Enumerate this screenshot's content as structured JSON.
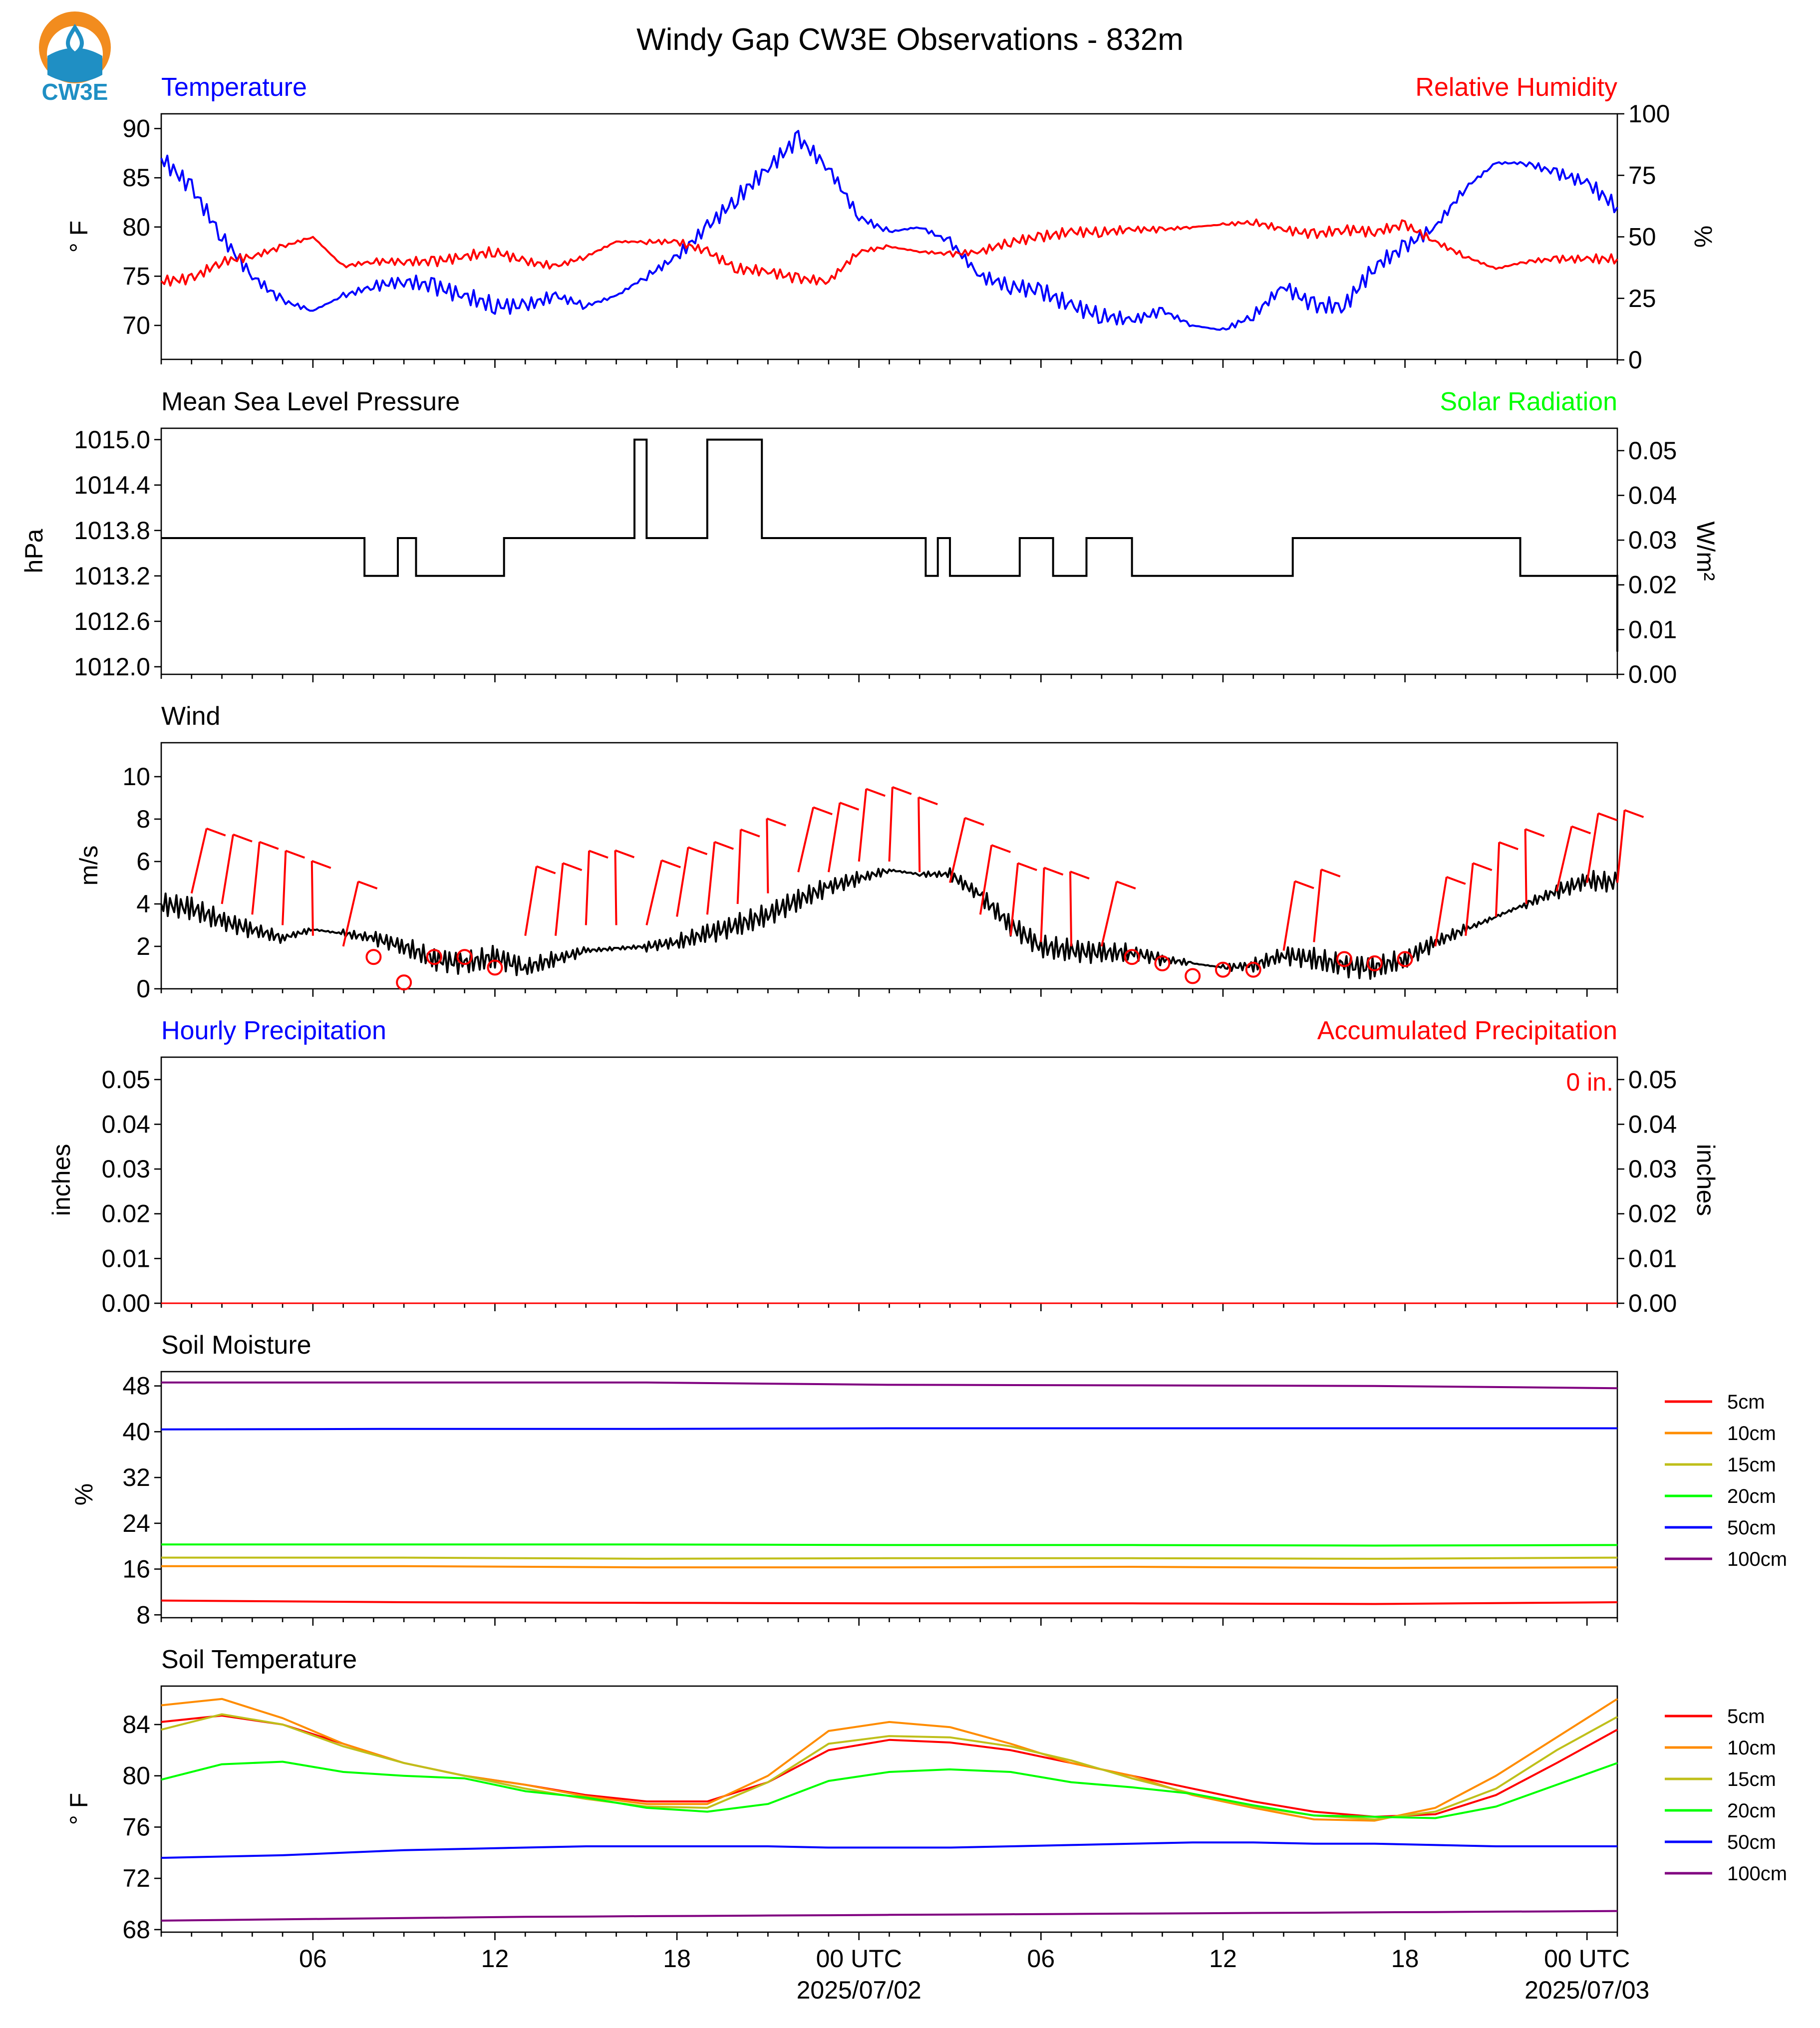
{
  "title": "Windy Gap CW3E Observations - 832m",
  "logo": {
    "text": "CW3E",
    "primary_color": "#f28c1e",
    "secondary_color": "#1f8fc4"
  },
  "colors": {
    "blue": "#0000ff",
    "red": "#ff0000",
    "green": "#00ff00",
    "black": "#000000",
    "orange": "#ff8c00",
    "olive": "#bfbf1a",
    "purple": "#800080"
  },
  "x_axis": {
    "range_hours": [
      0,
      48
    ],
    "ticks": [
      {
        "t": 5,
        "label": "06"
      },
      {
        "t": 11,
        "label": "12"
      },
      {
        "t": 17,
        "label": "18"
      },
      {
        "t": 23,
        "label": "00 UTC"
      },
      {
        "t": 29,
        "label": "06"
      },
      {
        "t": 35,
        "label": "12"
      },
      {
        "t": 41,
        "label": "18"
      },
      {
        "t": 47,
        "label": "00 UTC"
      }
    ],
    "dates": [
      {
        "t": 23,
        "label": "2025/07/02"
      },
      {
        "t": 47,
        "label": "2025/07/03"
      }
    ]
  },
  "panels": {
    "temp_rh": {
      "left_title": "Temperature",
      "right_title": "Relative Humidity",
      "ylabel_left": "° F",
      "ylabel_right": "%",
      "yticks_left": [
        70,
        75,
        80,
        85,
        90
      ],
      "ylim_left": [
        66.5,
        91.5
      ],
      "yticks_right": [
        0,
        25,
        50,
        75,
        100
      ],
      "ylim_right": [
        0,
        100
      ]
    },
    "pressure": {
      "left_title": "Mean Sea Level Pressure",
      "right_title": "Solar Radiation",
      "ylabel_left": "hPa",
      "ylabel_right": "W/m²",
      "yticks_left": [
        "1012.0",
        "1012.6",
        "1013.2",
        "1013.8",
        "1014.4",
        "1015.0"
      ],
      "ylim_left": [
        1011.9,
        1015.15
      ],
      "yticks_right": [
        "0.00",
        "0.01",
        "0.02",
        "0.03",
        "0.04",
        "0.05"
      ],
      "ylim_right": [
        0,
        0.055
      ]
    },
    "wind": {
      "left_title": "Wind",
      "ylabel_left": "m/s",
      "yticks_left": [
        0,
        2,
        4,
        6,
        8,
        10
      ],
      "ylim_left": [
        0,
        11.6
      ]
    },
    "precip": {
      "left_title": "Hourly Precipitation",
      "right_title": "Accumulated Precipitation",
      "ylabel_left": "inches",
      "ylabel_right": "inches",
      "accum_label": "0 in.",
      "yticks_left": [
        "0.00",
        "0.01",
        "0.02",
        "0.03",
        "0.04",
        "0.05"
      ],
      "yticks_right": [
        "0.00",
        "0.01",
        "0.02",
        "0.03",
        "0.04",
        "0.05"
      ],
      "ylim": [
        0,
        0.055
      ]
    },
    "soil_moisture": {
      "left_title": "Soil Moisture",
      "ylabel_left": "%",
      "yticks_left": [
        8,
        16,
        24,
        32,
        40,
        48
      ],
      "ylim_left": [
        7.5,
        50.5
      ],
      "legend": [
        "5cm",
        "10cm",
        "15cm",
        "20cm",
        "50cm",
        "100cm"
      ]
    },
    "soil_temp": {
      "left_title": "Soil Temperature",
      "ylabel_left": "° F",
      "yticks_left": [
        68,
        72,
        76,
        80,
        84
      ],
      "ylim_left": [
        67.8,
        87
      ],
      "legend": [
        "5cm",
        "10cm",
        "15cm",
        "20cm",
        "50cm",
        "100cm"
      ]
    }
  },
  "chart_data": [
    {
      "type": "line",
      "title": "Temperature / Relative Humidity",
      "xlabel": "",
      "series": [
        {
          "name": "Temperature",
          "axis": "left",
          "color": "#0000ff",
          "x": [
            0,
            1,
            2,
            3,
            4,
            5,
            6,
            7,
            8,
            9,
            10,
            11,
            12,
            13,
            14,
            15,
            16,
            17,
            18,
            19,
            20,
            21,
            22,
            23,
            24,
            25,
            26,
            27,
            28,
            29,
            30,
            31,
            32,
            33,
            34,
            35,
            36,
            37,
            38,
            39,
            40,
            41,
            42,
            43,
            44,
            45,
            46,
            47,
            48
          ],
          "y": [
            87,
            84,
            79,
            75,
            72.5,
            71.5,
            73,
            74,
            74.5,
            74,
            73,
            72,
            72,
            73,
            72,
            73,
            75,
            77,
            80,
            83,
            86,
            89,
            86,
            81,
            79.5,
            80,
            78.5,
            75,
            74,
            73.5,
            72,
            71,
            70.5,
            71.5,
            70,
            69.5,
            71,
            74,
            72,
            72,
            76,
            78,
            80,
            84,
            86.5,
            86.5,
            85.5,
            84.5,
            82
          ]
        },
        {
          "name": "Relative Humidity",
          "axis": "right",
          "color": "#ff0000",
          "x": [
            0,
            1,
            2,
            3,
            4,
            5,
            6,
            7,
            8,
            9,
            10,
            11,
            12,
            13,
            14,
            15,
            16,
            17,
            18,
            19,
            20,
            21,
            22,
            23,
            24,
            25,
            26,
            27,
            28,
            29,
            30,
            31,
            32,
            33,
            34,
            35,
            36,
            37,
            38,
            39,
            40,
            41,
            42,
            43,
            44,
            45,
            46,
            47,
            48
          ],
          "y": [
            32,
            33,
            40,
            42,
            46,
            50,
            38,
            40,
            40,
            40,
            42,
            44,
            40,
            38,
            42,
            48,
            48,
            48,
            44,
            37,
            36,
            33,
            32,
            44,
            46,
            44,
            43,
            44,
            48,
            50,
            52,
            52,
            53,
            53,
            54,
            55,
            56,
            53,
            51,
            53,
            52,
            55,
            48,
            42,
            37,
            40,
            41,
            41,
            41
          ]
        }
      ]
    },
    {
      "type": "line",
      "title": "Mean Sea Level Pressure / Solar Radiation",
      "xlabel": "",
      "series": [
        {
          "name": "Mean Sea Level Pressure",
          "axis": "left",
          "color": "#000000",
          "x": [
            0,
            1,
            6.5,
            6.7,
            7.2,
            7.8,
            8.4,
            9.3,
            10.9,
            11.3,
            11.7,
            12.5,
            15.3,
            15.6,
            16,
            16.3,
            17,
            18,
            18.1,
            19.6,
            19.8,
            23.6,
            23.8,
            25.2,
            25.6,
            26,
            26.5,
            27.9,
            28.3,
            29.4,
            29.8,
            30.5,
            31.2,
            32,
            33,
            34,
            36.3,
            37.3,
            37.6,
            39.3,
            39.5,
            44.7,
            44.8,
            45.2,
            45.6,
            47.7,
            48
          ],
          "y": [
            1013.7,
            1013.7,
            1013.7,
            1013.2,
            1013.2,
            1013.7,
            1013.2,
            1013.2,
            1013.2,
            1013.7,
            1013.7,
            1013.7,
            1013.7,
            1015.0,
            1013.7,
            1013.7,
            1013.7,
            1015.0,
            1015.0,
            1015.0,
            1013.7,
            1013.7,
            1013.7,
            1013.2,
            1013.7,
            1013.2,
            1013.2,
            1013.2,
            1013.7,
            1013.2,
            1013.2,
            1013.7,
            1013.7,
            1013.2,
            1013.2,
            1013.2,
            1013.2,
            1013.7,
            1013.7,
            1013.7,
            1013.7,
            1013.7,
            1013.2,
            1013.2,
            1013.2,
            1013.2,
            1012.2
          ]
        },
        {
          "name": "Solar Radiation",
          "axis": "right",
          "color": "#00ff00",
          "x": [],
          "y": []
        }
      ]
    },
    {
      "type": "line",
      "title": "Wind",
      "xlabel": "",
      "ylabel": "m/s",
      "series": [
        {
          "name": "Wind speed",
          "color": "#000000",
          "x": [
            0,
            1,
            2,
            3,
            4,
            5,
            6,
            7,
            8,
            9,
            10,
            11,
            12,
            13,
            14,
            15,
            16,
            17,
            18,
            19,
            20,
            21,
            22,
            23,
            24,
            25,
            26,
            27,
            28,
            29,
            30,
            31,
            32,
            33,
            34,
            35,
            36,
            37,
            38,
            39,
            40,
            41,
            42,
            43,
            44,
            45,
            46,
            47,
            48
          ],
          "y": [
            4,
            3.8,
            3.2,
            2.8,
            2.4,
            2.8,
            2.6,
            2.4,
            2,
            1.4,
            1.2,
            1.5,
            1,
            1.4,
            1.8,
            1.9,
            2,
            2.2,
            2.6,
            3,
            3.5,
            4.2,
            4.8,
            5.2,
            5.6,
            5.4,
            5.4,
            4.4,
            3,
            2,
            1.8,
            1.7,
            1.7,
            1.4,
            1.2,
            1,
            1.1,
            1.6,
            1.4,
            1.1,
            1,
            1.4,
            2.2,
            2.8,
            3.4,
            4,
            4.6,
            5.1,
            5
          ]
        },
        {
          "name": "Wind barbs",
          "color": "#ff0000",
          "x": [
            1,
            2,
            3,
            4,
            5,
            6,
            7,
            8,
            9,
            10,
            11,
            12,
            13,
            14,
            15,
            16,
            17,
            18,
            19,
            20,
            21,
            22,
            23,
            24,
            25,
            26,
            27,
            28,
            29,
            30,
            31,
            32,
            33,
            34,
            35,
            36,
            37,
            38,
            39,
            40,
            41,
            42,
            43,
            44,
            45,
            46,
            47,
            48
          ],
          "y": [
            4.5,
            4,
            3.5,
            3,
            2.5,
            2,
            1.5,
            0.3,
            1.5,
            1.5,
            1,
            2.5,
            2.5,
            3,
            3,
            3,
            3.4,
            3.5,
            4,
            4.5,
            5.5,
            5.5,
            6,
            6,
            5.5,
            5,
            3.5,
            2.5,
            2.2,
            2,
            2,
            1.5,
            1.2,
            0.6,
            0.9,
            0.9,
            1.8,
            2.2,
            1.4,
            1.2,
            1.4,
            2,
            2.5,
            3.4,
            4,
            4.6,
            5,
            5
          ]
        }
      ]
    },
    {
      "type": "line",
      "title": "Hourly Precipitation / Accumulated Precipitation",
      "xlabel": "",
      "series": [
        {
          "name": "Hourly Precipitation",
          "color": "#0000ff",
          "x": [
            0,
            48
          ],
          "y": [
            0,
            0
          ]
        },
        {
          "name": "Accumulated Precipitation",
          "color": "#ff0000",
          "x": [
            0,
            48
          ],
          "y": [
            0,
            0
          ]
        }
      ]
    },
    {
      "type": "line",
      "title": "Soil Moisture",
      "xlabel": "",
      "ylabel": "%",
      "x": [
        0,
        8,
        16,
        24,
        32,
        40,
        48
      ],
      "series": [
        {
          "name": "5cm",
          "color": "#ff0000",
          "values": [
            10.5,
            10.2,
            10.1,
            10.0,
            10.0,
            9.9,
            10.2
          ]
        },
        {
          "name": "10cm",
          "color": "#ff8c00",
          "values": [
            16.5,
            16.5,
            16.3,
            16.3,
            16.4,
            16.2,
            16.3
          ]
        },
        {
          "name": "15cm",
          "color": "#bfbf1a",
          "values": [
            18.0,
            18.0,
            17.8,
            17.9,
            17.9,
            17.8,
            18.0
          ]
        },
        {
          "name": "20cm",
          "color": "#00ff00",
          "values": [
            20.3,
            20.3,
            20.3,
            20.2,
            20.2,
            20.1,
            20.2
          ]
        },
        {
          "name": "50cm",
          "color": "#0000ff",
          "values": [
            40.4,
            40.5,
            40.5,
            40.6,
            40.6,
            40.6,
            40.6
          ]
        },
        {
          "name": "100cm",
          "color": "#800080",
          "values": [
            48.6,
            48.6,
            48.6,
            48.2,
            48.1,
            48.0,
            47.6
          ]
        }
      ]
    },
    {
      "type": "line",
      "title": "Soil Temperature",
      "xlabel": "",
      "ylabel": "° F",
      "x": [
        0,
        2,
        4,
        6,
        8,
        10,
        12,
        14,
        16,
        18,
        20,
        22,
        24,
        26,
        28,
        30,
        32,
        34,
        36,
        38,
        40,
        42,
        44,
        46,
        48
      ],
      "series": [
        {
          "name": "5cm",
          "color": "#ff0000",
          "values": [
            84.2,
            84.7,
            84,
            82.5,
            81,
            80,
            79.3,
            78.5,
            78,
            78,
            79.5,
            82,
            82.8,
            82.6,
            82,
            81,
            80,
            79,
            78,
            77.2,
            76.8,
            77,
            78.5,
            81,
            83.6
          ]
        },
        {
          "name": "10cm",
          "color": "#ff8c00",
          "values": [
            85.5,
            86,
            84.5,
            82.5,
            81,
            80,
            79.3,
            78.4,
            77.8,
            77.8,
            80,
            83.5,
            84.2,
            83.8,
            82.5,
            81,
            80,
            78.5,
            77.5,
            76.6,
            76.5,
            77.5,
            80,
            83,
            86
          ]
        },
        {
          "name": "15cm",
          "color": "#bfbf1a",
          "values": [
            83.6,
            84.8,
            84,
            82.3,
            81,
            80,
            79,
            78.2,
            77.6,
            77.5,
            79.5,
            82.5,
            83.1,
            83,
            82.3,
            81.2,
            79.8,
            78.6,
            77.6,
            76.9,
            76.6,
            77.2,
            79,
            82,
            84.6
          ]
        },
        {
          "name": "20cm",
          "color": "#00ff00",
          "values": [
            79.7,
            80.9,
            81.1,
            80.3,
            80,
            79.8,
            78.8,
            78.3,
            77.5,
            77.2,
            77.8,
            79.6,
            80.3,
            80.5,
            80.3,
            79.5,
            79.1,
            78.6,
            77.7,
            76.9,
            76.8,
            76.7,
            77.6,
            79.3,
            81
          ]
        },
        {
          "name": "50cm",
          "color": "#0000ff",
          "values": [
            73.6,
            73.7,
            73.8,
            74,
            74.2,
            74.3,
            74.4,
            74.5,
            74.5,
            74.5,
            74.5,
            74.4,
            74.4,
            74.4,
            74.5,
            74.6,
            74.7,
            74.8,
            74.8,
            74.7,
            74.7,
            74.6,
            74.5,
            74.5,
            74.5
          ]
        },
        {
          "name": "100cm",
          "color": "#800080",
          "values": [
            68.7,
            68.75,
            68.8,
            68.85,
            68.9,
            68.95,
            69,
            69.02,
            69.05,
            69.07,
            69.1,
            69.12,
            69.15,
            69.17,
            69.2,
            69.22,
            69.25,
            69.27,
            69.3,
            69.32,
            69.35,
            69.37,
            69.4,
            69.42,
            69.45
          ]
        }
      ]
    }
  ]
}
